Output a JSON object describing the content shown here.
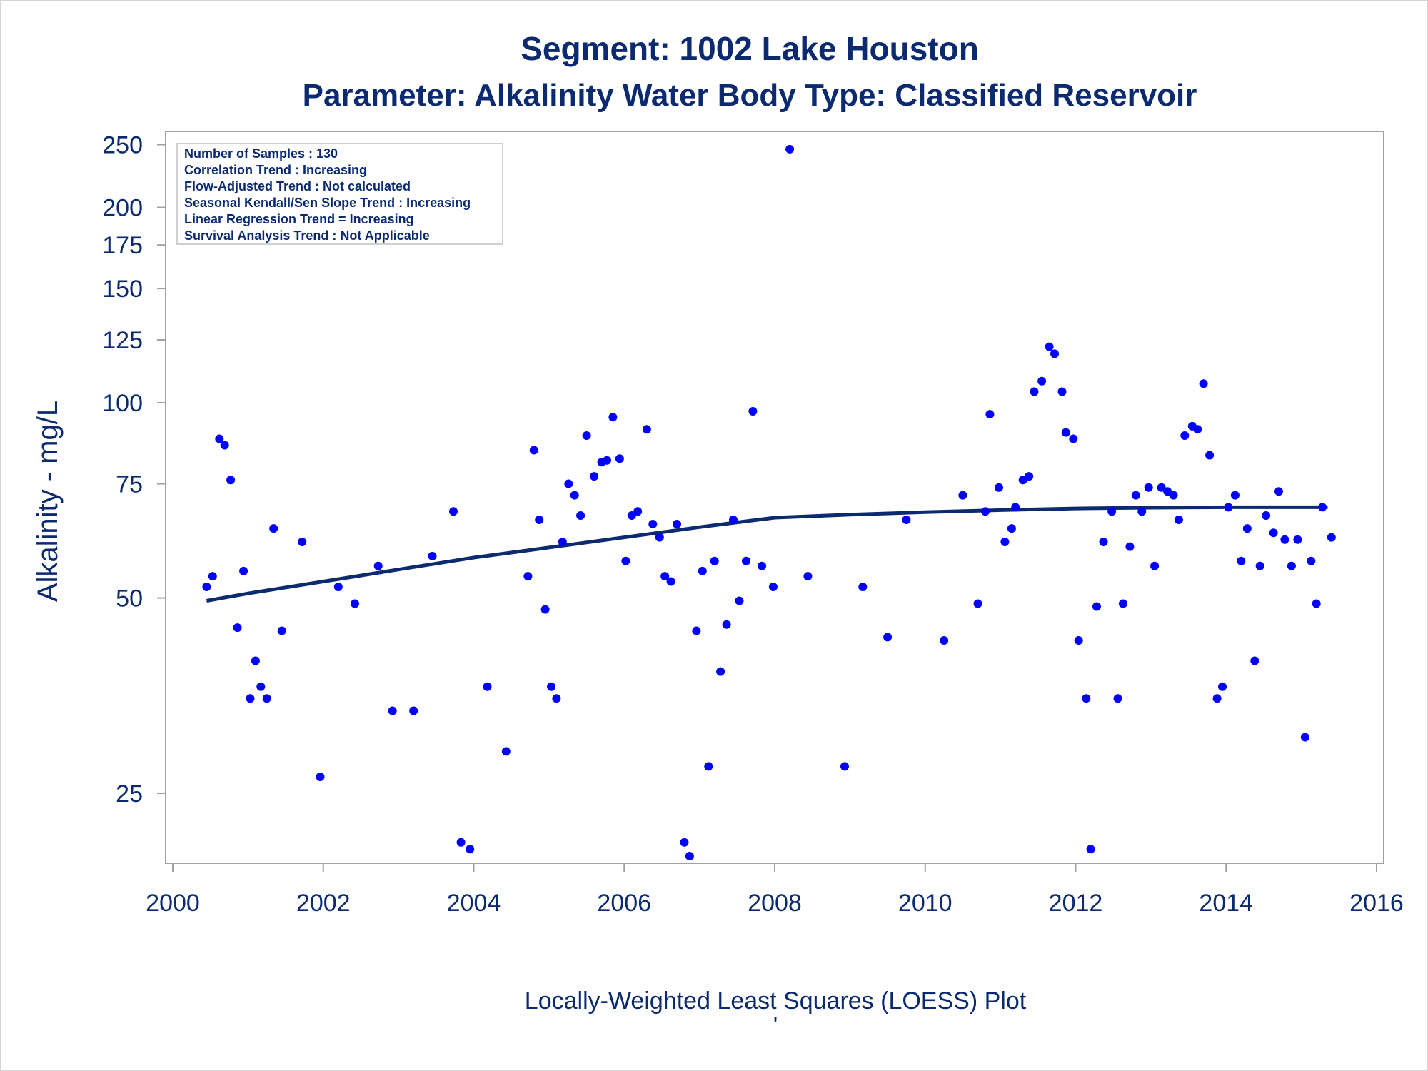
{
  "chart_data": {
    "type": "scatter",
    "title": "Segment: 1002  Lake Houston",
    "subtitle": "Parameter: Alkalinity   Water Body Type: Classified Reservoir",
    "xlabel": "Locally-Weighted Least Squares (LOESS) Plot",
    "ylabel": "Alkalinity - mg/L",
    "footnote": "'",
    "xlim": [
      2000,
      2016
    ],
    "x_ticks": [
      2000,
      2002,
      2004,
      2006,
      2008,
      2010,
      2012,
      2014,
      2016
    ],
    "y_scale": "log",
    "ylim": [
      19.5,
      262
    ],
    "y_ticks": [
      25,
      50,
      75,
      100,
      125,
      150,
      175,
      200,
      250
    ],
    "grid": false,
    "colors": {
      "points": "#0000ff",
      "line": "#0b2a6f",
      "text": "#0b2a6f",
      "axis": "#a0a0a0"
    },
    "stats_box": {
      "position": "top-left",
      "lines": [
        "Number of Samples : 130",
        "Correlation Trend : Increasing",
        "Flow-Adjusted Trend : Not calculated",
        "Seasonal Kendall/Sen Slope Trend : Increasing",
        "Linear Regression Trend = Increasing",
        "Survival Analysis Trend : Not Applicable"
      ]
    },
    "series": [
      {
        "type": "scatter",
        "points": [
          [
            2000.45,
            52
          ],
          [
            2000.53,
            54
          ],
          [
            2000.62,
            88
          ],
          [
            2000.69,
            86
          ],
          [
            2000.77,
            76
          ],
          [
            2000.86,
            45
          ],
          [
            2000.94,
            55
          ],
          [
            2001.03,
            35
          ],
          [
            2001.1,
            40
          ],
          [
            2001.17,
            36.5
          ],
          [
            2001.25,
            35
          ],
          [
            2001.34,
            64
          ],
          [
            2001.45,
            44.5
          ],
          [
            2001.72,
            61
          ],
          [
            2001.96,
            26.5
          ],
          [
            2002.2,
            52
          ],
          [
            2002.42,
            49
          ],
          [
            2002.73,
            56
          ],
          [
            2002.92,
            33.5
          ],
          [
            2003.2,
            33.5
          ],
          [
            2003.45,
            58
          ],
          [
            2003.73,
            68
          ],
          [
            2003.83,
            21
          ],
          [
            2003.95,
            20.5
          ],
          [
            2004.18,
            36.5
          ],
          [
            2004.43,
            29
          ],
          [
            2004.72,
            54
          ],
          [
            2004.8,
            84.5
          ],
          [
            2004.87,
            66
          ],
          [
            2004.95,
            48
          ],
          [
            2005.03,
            36.5
          ],
          [
            2005.1,
            35
          ],
          [
            2005.18,
            61
          ],
          [
            2005.26,
            75
          ],
          [
            2005.34,
            72
          ],
          [
            2005.42,
            67
          ],
          [
            2005.5,
            89
          ],
          [
            2005.6,
            77
          ],
          [
            2005.7,
            81
          ],
          [
            2005.77,
            81.5
          ],
          [
            2005.85,
            95
          ],
          [
            2005.94,
            82
          ],
          [
            2006.02,
            57
          ],
          [
            2006.1,
            67
          ],
          [
            2006.18,
            68
          ],
          [
            2006.3,
            91
          ],
          [
            2006.38,
            65
          ],
          [
            2006.47,
            62
          ],
          [
            2006.54,
            54
          ],
          [
            2006.62,
            53
          ],
          [
            2006.7,
            65
          ],
          [
            2006.8,
            21
          ],
          [
            2006.87,
            20
          ],
          [
            2006.96,
            44.5
          ],
          [
            2007.04,
            55
          ],
          [
            2007.12,
            27.5
          ],
          [
            2007.2,
            57
          ],
          [
            2007.28,
            38.5
          ],
          [
            2007.36,
            45.5
          ],
          [
            2007.45,
            66
          ],
          [
            2007.53,
            49.5
          ],
          [
            2007.62,
            57
          ],
          [
            2007.71,
            97
          ],
          [
            2007.83,
            56
          ],
          [
            2007.98,
            52
          ],
          [
            2008.2,
            246
          ],
          [
            2008.44,
            54
          ],
          [
            2008.93,
            27.5
          ],
          [
            2009.17,
            52
          ],
          [
            2009.5,
            43.5
          ],
          [
            2009.75,
            66
          ],
          [
            2010.25,
            43
          ],
          [
            2010.5,
            72
          ],
          [
            2010.7,
            49
          ],
          [
            2010.8,
            68
          ],
          [
            2010.86,
            96
          ],
          [
            2010.98,
            74
          ],
          [
            2011.06,
            61
          ],
          [
            2011.15,
            64
          ],
          [
            2011.2,
            69
          ],
          [
            2011.3,
            76
          ],
          [
            2011.38,
            77
          ],
          [
            2011.45,
            104
          ],
          [
            2011.55,
            108
          ],
          [
            2011.65,
            122
          ],
          [
            2011.72,
            119
          ],
          [
            2011.82,
            104
          ],
          [
            2011.87,
            90
          ],
          [
            2011.97,
            88
          ],
          [
            2012.04,
            43
          ],
          [
            2012.14,
            35
          ],
          [
            2012.2,
            20.5
          ],
          [
            2012.28,
            48.5
          ],
          [
            2012.37,
            61
          ],
          [
            2012.48,
            68
          ],
          [
            2012.56,
            35
          ],
          [
            2012.63,
            49
          ],
          [
            2012.72,
            60
          ],
          [
            2012.8,
            72
          ],
          [
            2012.88,
            68
          ],
          [
            2012.97,
            74
          ],
          [
            2013.05,
            56
          ],
          [
            2013.14,
            74
          ],
          [
            2013.22,
            73
          ],
          [
            2013.3,
            72
          ],
          [
            2013.37,
            66
          ],
          [
            2013.45,
            89
          ],
          [
            2013.55,
            92
          ],
          [
            2013.62,
            91
          ],
          [
            2013.7,
            107
          ],
          [
            2013.78,
            83
          ],
          [
            2013.88,
            35
          ],
          [
            2013.95,
            36.5
          ],
          [
            2014.03,
            69
          ],
          [
            2014.12,
            72
          ],
          [
            2014.2,
            57
          ],
          [
            2014.28,
            64
          ],
          [
            2014.38,
            40
          ],
          [
            2014.45,
            56
          ],
          [
            2014.53,
            67
          ],
          [
            2014.63,
            63
          ],
          [
            2014.7,
            73
          ],
          [
            2014.78,
            61.5
          ],
          [
            2014.87,
            56
          ],
          [
            2014.95,
            61.5
          ],
          [
            2015.05,
            30.5
          ],
          [
            2015.13,
            57
          ],
          [
            2015.2,
            49
          ],
          [
            2015.28,
            69
          ],
          [
            2015.4,
            62
          ]
        ]
      },
      {
        "type": "line",
        "points": [
          [
            2000.45,
            49.5
          ],
          [
            2001,
            50.8
          ],
          [
            2002,
            53
          ],
          [
            2003,
            55.3
          ],
          [
            2004,
            57.7
          ],
          [
            2005,
            59.8
          ],
          [
            2006,
            62
          ],
          [
            2007,
            64.3
          ],
          [
            2008,
            66.5
          ],
          [
            2009,
            67.2
          ],
          [
            2010,
            67.8
          ],
          [
            2011,
            68.3
          ],
          [
            2012,
            68.7
          ],
          [
            2013,
            68.9
          ],
          [
            2014,
            69
          ],
          [
            2015.35,
            69
          ]
        ]
      }
    ]
  }
}
